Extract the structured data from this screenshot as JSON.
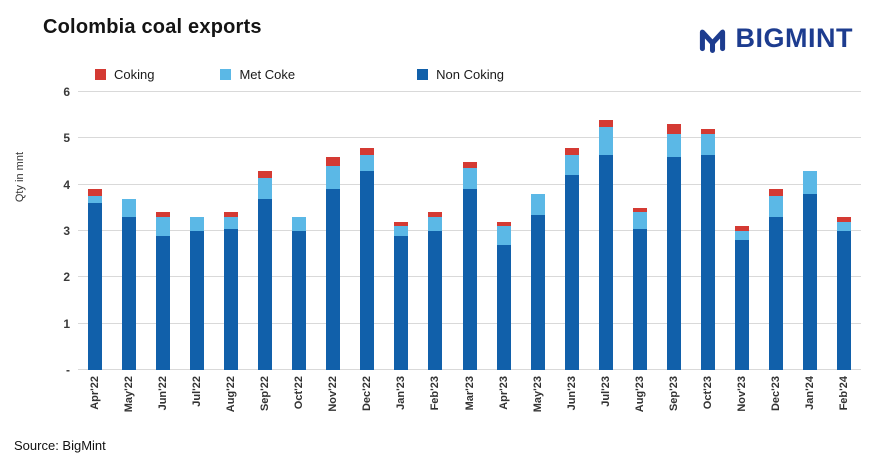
{
  "header": {
    "title": "Colombia coal exports",
    "brand": "BIGMINT"
  },
  "legend": [
    {
      "label": "Coking",
      "color": "#d43a33"
    },
    {
      "label": "Met Coke",
      "color": "#5bb8e6"
    },
    {
      "label": "Non Coking",
      "color": "#1160aa"
    }
  ],
  "footer": {
    "source": "Source: BigMint"
  },
  "colors": {
    "coking_red": "#d43a33",
    "met_coke_blue": "#5bb8e6",
    "non_coking_blue": "#1160aa",
    "brand_navy": "#1d3c8f",
    "gridline_gray": "#d9d9d9"
  },
  "chart_data": {
    "type": "bar",
    "stacked": true,
    "title": "Colombia coal exports",
    "xlabel": "",
    "ylabel": "Qty in mnt",
    "ylim": [
      0,
      6
    ],
    "yticks": [
      "-",
      "1",
      "2",
      "3",
      "4",
      "5",
      "6"
    ],
    "grid": "horizontal",
    "legend_position": "top",
    "categories": [
      "Apr'22",
      "May'22",
      "Jun'22",
      "Jul'22",
      "Aug'22",
      "Sep'22",
      "Oct'22",
      "Nov'22",
      "Dec'22",
      "Jan'23",
      "Feb'23",
      "Mar'23",
      "Apr'23",
      "May'23",
      "Jun'23",
      "Jul'23",
      "Aug'23",
      "Sep'23",
      "Oct'23",
      "Nov'23",
      "Dec'23",
      "Jan'24",
      "Feb'24"
    ],
    "series": [
      {
        "name": "Non Coking",
        "color": "#1160aa",
        "values": [
          3.6,
          3.3,
          2.9,
          3.0,
          3.05,
          3.7,
          3.0,
          3.9,
          4.3,
          2.9,
          3.0,
          3.9,
          2.7,
          3.35,
          4.2,
          4.65,
          3.05,
          4.6,
          4.65,
          2.8,
          3.3,
          3.8,
          3.0
        ]
      },
      {
        "name": "Met Coke",
        "color": "#5bb8e6",
        "values": [
          0.15,
          0.4,
          0.4,
          0.3,
          0.25,
          0.45,
          0.3,
          0.5,
          0.35,
          0.2,
          0.3,
          0.45,
          0.4,
          0.45,
          0.45,
          0.6,
          0.35,
          0.5,
          0.45,
          0.2,
          0.45,
          0.5,
          0.2
        ]
      },
      {
        "name": "Coking",
        "color": "#d43a33",
        "values": [
          0.15,
          0,
          0.1,
          0,
          0.1,
          0.15,
          0,
          0.2,
          0.15,
          0.1,
          0.1,
          0.15,
          0.1,
          0,
          0.15,
          0.15,
          0.1,
          0.2,
          0.1,
          0.1,
          0.15,
          0,
          0.1
        ]
      }
    ],
    "totals": [
      3.9,
      3.7,
      3.4,
      3.3,
      3.4,
      4.3,
      3.3,
      4.6,
      4.8,
      3.2,
      3.4,
      4.5,
      3.2,
      3.8,
      4.8,
      5.4,
      3.5,
      5.3,
      5.2,
      3.1,
      3.9,
      4.3,
      3.3
    ]
  }
}
